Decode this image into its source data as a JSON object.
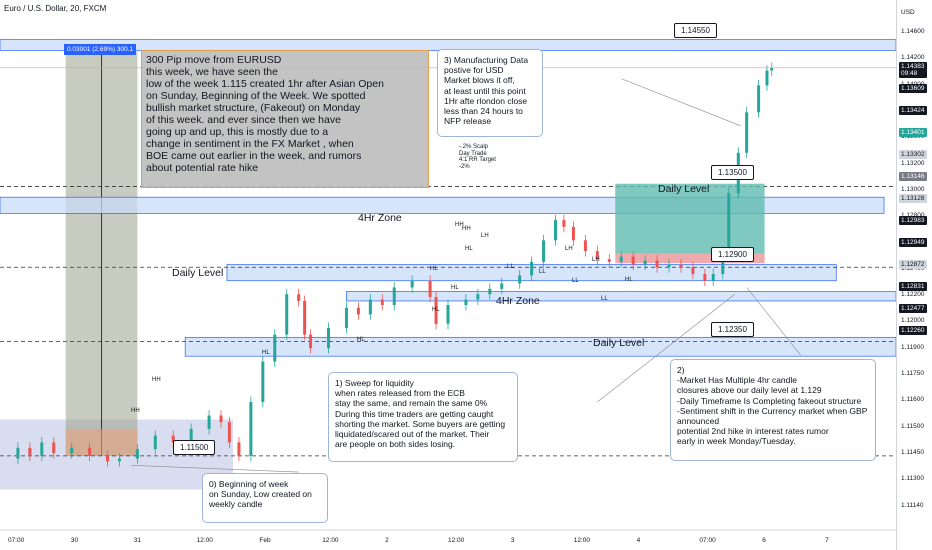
{
  "symbol_line": "Euro / U.S. Dollar, 20, FXCM",
  "colors": {
    "up": "#26a69a",
    "down": "#ef5350",
    "zone_fill": "#c8dcf8",
    "zone_stroke": "#2962ff",
    "dashed": "#333333",
    "accum": "#bfc7e6",
    "trade_green": "#5fbcb0",
    "current_price": "#131722"
  },
  "chart_data": {
    "type": "candlestick",
    "instrument": "EURUSD",
    "timeframe": "20",
    "ylim": [
      1.1095,
      1.1475
    ],
    "price_unit": "USD",
    "time_range": [
      0,
      7.5
    ],
    "close_series": [
      [
        0.05,
        1.1148
      ],
      [
        0.15,
        1.1156
      ],
      [
        0.25,
        1.115
      ],
      [
        0.35,
        1.116
      ],
      [
        0.45,
        1.1152
      ],
      [
        0.6,
        1.1156
      ],
      [
        0.75,
        1.115
      ],
      [
        0.9,
        1.1146
      ],
      [
        1.0,
        1.1148
      ],
      [
        1.15,
        1.1155
      ],
      [
        1.3,
        1.1165
      ],
      [
        1.45,
        1.116
      ],
      [
        1.6,
        1.117
      ],
      [
        1.75,
        1.118
      ],
      [
        1.85,
        1.1175
      ],
      [
        1.92,
        1.116
      ],
      [
        2.0,
        1.115
      ],
      [
        2.1,
        1.119
      ],
      [
        2.2,
        1.122
      ],
      [
        2.3,
        1.124
      ],
      [
        2.4,
        1.127
      ],
      [
        2.5,
        1.1265
      ],
      [
        2.55,
        1.124
      ],
      [
        2.6,
        1.123
      ],
      [
        2.75,
        1.1245
      ],
      [
        2.9,
        1.126
      ],
      [
        3.0,
        1.1255
      ],
      [
        3.1,
        1.1266
      ],
      [
        3.2,
        1.1262
      ],
      [
        3.3,
        1.1275
      ],
      [
        3.45,
        1.128
      ],
      [
        3.6,
        1.1268
      ],
      [
        3.65,
        1.1248
      ],
      [
        3.75,
        1.1262
      ],
      [
        3.9,
        1.1266
      ],
      [
        4.0,
        1.127
      ],
      [
        4.1,
        1.1274
      ],
      [
        4.2,
        1.1278
      ],
      [
        4.35,
        1.1284
      ],
      [
        4.45,
        1.1294
      ],
      [
        4.55,
        1.131
      ],
      [
        4.65,
        1.1325
      ],
      [
        4.72,
        1.132
      ],
      [
        4.8,
        1.131
      ],
      [
        4.9,
        1.1302
      ],
      [
        5.0,
        1.1296
      ],
      [
        5.1,
        1.1294
      ],
      [
        5.2,
        1.1298
      ],
      [
        5.3,
        1.1292
      ],
      [
        5.4,
        1.1295
      ],
      [
        5.5,
        1.129
      ],
      [
        5.6,
        1.1292
      ],
      [
        5.7,
        1.129
      ],
      [
        5.8,
        1.1285
      ],
      [
        5.9,
        1.128
      ],
      [
        5.97,
        1.1285
      ],
      [
        6.05,
        1.13
      ],
      [
        6.1,
        1.1345
      ],
      [
        6.18,
        1.1375
      ],
      [
        6.25,
        1.1405
      ],
      [
        6.35,
        1.1425
      ],
      [
        6.42,
        1.1436
      ],
      [
        6.46,
        1.1438
      ]
    ],
    "horizontal_levels": [
      {
        "price": 1.1455,
        "label": "1.14550",
        "style": "zone"
      },
      {
        "price": 1.135,
        "label": "1.13500",
        "style": "dashed"
      },
      {
        "price": 1.129,
        "label": "1.12900",
        "style": "dashed"
      },
      {
        "price": 1.1235,
        "label": "1.12350",
        "style": "dashed"
      },
      {
        "price": 1.115,
        "label": "1.11500",
        "style": "dashed"
      }
    ],
    "zones": [
      {
        "name": "4Hr Zone",
        "from": 1.133,
        "to": 1.1342
      },
      {
        "name": "Daily Level",
        "from": 1.128,
        "to": 1.1292
      },
      {
        "name": "4Hr Zone",
        "from": 1.1265,
        "to": 1.1272
      },
      {
        "name": "Daily Level",
        "from": 1.1224,
        "to": 1.1238
      }
    ],
    "price_scale_ticks": [
      "1.14600",
      "1.14200",
      "1.14000",
      "1.13800",
      "1.13600",
      "1.13200",
      "1.13000",
      "1.12800",
      "1.12600",
      "1.12400",
      "1.12200",
      "1.12000",
      "1.11900",
      "1.11750",
      "1.11600",
      "1.11500",
      "1.11450",
      "1.11300",
      "1.11140"
    ],
    "time_ticks": [
      "07:00",
      "30",
      "31",
      "12:00",
      "Feb",
      "12:00",
      "2",
      "12:00",
      "3",
      "12:00",
      "4",
      "07:00",
      "6",
      "7"
    ],
    "price_tags": [
      {
        "text": "1.14383\n09:48",
        "kind": "current"
      },
      {
        "text": "1.13609",
        "kind": "dark"
      },
      {
        "text": "1.13424",
        "kind": "dark"
      },
      {
        "text": "1.13401",
        "kind": "green"
      },
      {
        "text": "1.13302",
        "kind": "light"
      },
      {
        "text": "1.13146",
        "kind": "gray"
      },
      {
        "text": "1.13128",
        "kind": "light"
      },
      {
        "text": "1.12983",
        "kind": "dark"
      },
      {
        "text": "1.12949",
        "kind": "dark"
      },
      {
        "text": "1.12872",
        "kind": "light"
      },
      {
        "text": "1.12831",
        "kind": "dark"
      },
      {
        "text": "1.12477",
        "kind": "dark"
      },
      {
        "text": "1.12260",
        "kind": "dark"
      }
    ],
    "unit_label": "USD"
  },
  "annotations": {
    "measure_label": "0.03001 (2.69%) 300.1",
    "main_box": "300 Pip move from EURUSD\nthis week, we have seen the\nlow of the week 1.115 created 1hr after Asian Open\non Sunday, Beginning of the Week. We spotted\nbullish market structure, (Fakeout) on Monday\nof this week. and ever since then we have\ngoing up and up, this is mostly due to a\nchange in sentiment in the FX Market , when\nBOE came out earlier in the week, and rumors\nabout potential rate hike",
    "note3": "3) Manufacturing Data\npostive for USD\nMarket blows it off,\nat least until this point\n1Hr afte rlondon close\nless than 24 hours to\nNFP release",
    "note1": "1) Sweep for liquidity\nwhen rates released from the ECB\nstay the same, and remain the same 0%\nDuring this time traders are getting caught\nshorting the market. Some buyers are getting\nliquidated/scared out of the market. Their\nare people on both sides losing.",
    "note2": "2)\n-Market Has Multiple 4hr candle\nclosures above our daily level at 1.129\n-Daily Timeframe Is Completing fakeout structure\n-Sentiment shift in the Currency market when GBP\nannounced\npotential 2nd hike in interest rates rumor\nearly in week Monday/Tuesday.",
    "note0": "0) Beginning of week\non Sunday, Low created on\nweekly candle",
    "scalp_note": "-.2% Scalp\n Day Trade\n 4:1 RR Target\n -2%",
    "level_tags": {
      "t14550": "1.14550",
      "t13500": "1.13500",
      "t12900": "1.12900",
      "t12350": "1.12350",
      "t11500": "1.11500"
    },
    "zone_labels": {
      "zone4h_top": "4Hr Zone",
      "zone_daily_mid": "Daily Level",
      "zone4h_low": "4Hr Zone",
      "zone_daily_low": "Daily Level",
      "daily_level_right": "Daily Level"
    },
    "pivots": [
      "HH",
      "HH",
      "HL",
      "HL",
      "HL",
      "HH",
      "HL",
      "HL",
      "HH",
      "LH",
      "HL",
      "LH",
      "LL",
      "LL",
      "LL",
      "LH",
      "LL",
      "HL"
    ]
  }
}
